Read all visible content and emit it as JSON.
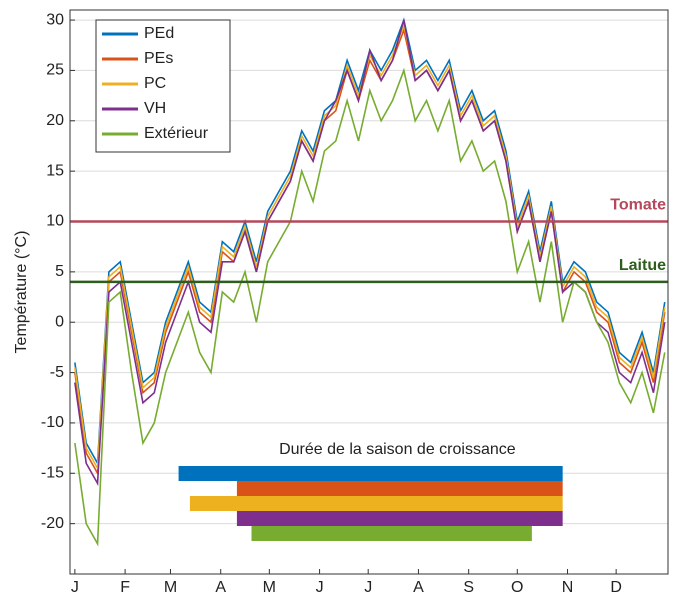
{
  "chart_data": {
    "type": "line",
    "ylabel": "Température (°C)",
    "x": [
      1,
      8,
      15,
      22,
      29,
      36,
      43,
      50,
      57,
      64,
      71,
      78,
      85,
      92,
      99,
      106,
      113,
      120,
      127,
      134,
      141,
      148,
      155,
      162,
      169,
      176,
      183,
      190,
      197,
      204,
      211,
      218,
      225,
      232,
      239,
      246,
      253,
      260,
      267,
      274,
      281,
      288,
      295,
      302,
      309,
      316,
      323,
      330,
      337,
      344,
      351,
      358,
      365
    ],
    "series": [
      {
        "name": "PEd",
        "color": "#0072bd",
        "values": [
          -4,
          -12,
          -14,
          5,
          6,
          0,
          -6,
          -5,
          0,
          3,
          6,
          2,
          1,
          8,
          7,
          10,
          6,
          11,
          13,
          15,
          19,
          17,
          21,
          22,
          26,
          23,
          27,
          25,
          27,
          30,
          25,
          26,
          24,
          26,
          21,
          23,
          20,
          21,
          17,
          10,
          13,
          7,
          12,
          4,
          6,
          5,
          2,
          1,
          -3,
          -4,
          -1,
          -5,
          2
        ]
      },
      {
        "name": "PEs",
        "color": "#d95319",
        "values": [
          -5,
          -13,
          -15,
          4,
          5,
          -1,
          -7,
          -6,
          -1,
          2,
          5,
          1,
          0,
          7,
          6,
          9,
          5,
          10,
          12,
          14,
          18,
          16,
          20,
          21,
          25,
          22,
          26,
          24,
          26,
          29,
          24,
          25,
          23,
          25,
          20,
          22,
          19,
          20,
          16,
          9,
          12,
          6,
          11,
          3,
          5,
          4,
          1,
          0,
          -4,
          -5,
          -2,
          -6,
          1
        ]
      },
      {
        "name": "PC",
        "color": "#edb120",
        "values": [
          -4.5,
          -12.5,
          -14.5,
          4.5,
          5.5,
          -0.5,
          -6.5,
          -5.5,
          -0.5,
          2.5,
          5.5,
          1.5,
          0.5,
          7.5,
          6.5,
          9.5,
          5.5,
          10.5,
          12.5,
          14.5,
          18.5,
          16.5,
          20.5,
          21.5,
          25.5,
          22.5,
          26.5,
          24.5,
          26.5,
          29.5,
          24.5,
          25.5,
          23.5,
          25.5,
          20.5,
          22.5,
          19.5,
          20.5,
          16.5,
          9.5,
          12.5,
          6.5,
          11.5,
          3.5,
          5.5,
          4.5,
          1.5,
          0.5,
          -3.5,
          -4.5,
          -1.5,
          -5.5,
          1.5
        ]
      },
      {
        "name": "VH",
        "color": "#7e2f8e",
        "values": [
          -6,
          -14,
          -16,
          3,
          4,
          -2,
          -8,
          -7,
          -2,
          1,
          4,
          0,
          -1,
          6,
          6,
          9,
          5,
          10,
          12,
          14,
          18,
          16,
          20,
          22,
          25,
          22,
          27,
          24,
          26,
          30,
          24,
          25,
          23,
          25,
          20,
          22,
          19,
          20,
          16,
          9,
          12,
          6,
          11,
          3,
          4,
          3,
          0,
          -1,
          -5,
          -6,
          -3,
          -7,
          0
        ]
      },
      {
        "name": "Extérieur",
        "color": "#77ac30",
        "values": [
          -12,
          -20,
          -22,
          2,
          3,
          -5,
          -12,
          -10,
          -5,
          -2,
          1,
          -3,
          -5,
          3,
          2,
          5,
          0,
          6,
          8,
          10,
          15,
          12,
          17,
          18,
          22,
          18,
          23,
          20,
          22,
          25,
          20,
          22,
          19,
          22,
          16,
          18,
          15,
          16,
          12,
          5,
          8,
          2,
          8,
          0,
          4,
          3,
          0,
          -2,
          -6,
          -8,
          -5,
          -9,
          -3
        ]
      }
    ],
    "xlim": [
      -2,
      367
    ],
    "xticks": [
      {
        "value": 1,
        "label": "J"
      },
      {
        "value": 32,
        "label": "F"
      },
      {
        "value": 60,
        "label": "M"
      },
      {
        "value": 91,
        "label": "A"
      },
      {
        "value": 121,
        "label": "M"
      },
      {
        "value": 152,
        "label": "J"
      },
      {
        "value": 182,
        "label": "J"
      },
      {
        "value": 213,
        "label": "A"
      },
      {
        "value": 244,
        "label": "S"
      },
      {
        "value": 274,
        "label": "O"
      },
      {
        "value": 305,
        "label": "N"
      },
      {
        "value": 335,
        "label": "D"
      }
    ],
    "ylim": [
      -25,
      31
    ],
    "yticks": [
      -20,
      -15,
      -10,
      -5,
      0,
      5,
      10,
      15,
      20,
      25,
      30
    ],
    "grid": true,
    "legend": "upper left",
    "hlines": [
      {
        "label": "Tomate",
        "value": 10,
        "color": "#b5485a"
      },
      {
        "label": "Laitue",
        "value": 4,
        "color": "#2e5e1e"
      }
    ],
    "growing_season": {
      "title": "Durée de la saison de croissance",
      "bars": [
        {
          "name": "PEd",
          "start": 65,
          "end": 302
        },
        {
          "name": "PEs",
          "start": 101,
          "end": 302
        },
        {
          "name": "PC",
          "start": 72,
          "end": 302
        },
        {
          "name": "VH",
          "start": 101,
          "end": 302
        },
        {
          "name": "Extérieur",
          "start": 110,
          "end": 283
        }
      ]
    }
  }
}
